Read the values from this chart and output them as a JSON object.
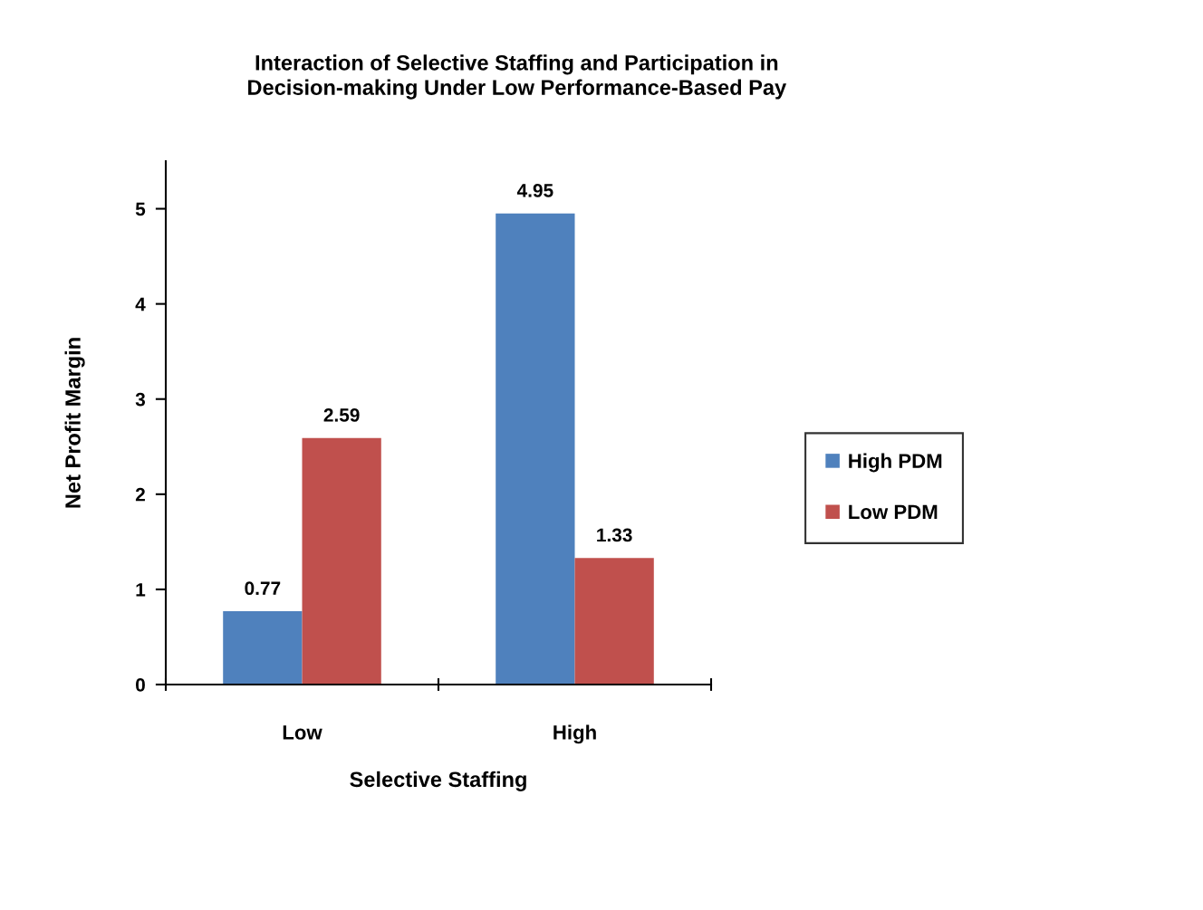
{
  "chart_data": {
    "type": "bar",
    "title": "Interaction of Selective Staffing and Participation in\nDecision-making Under Low Performance-Based Pay",
    "xlabel": "Selective Staffing",
    "ylabel": "Net Profit Margin",
    "categories": [
      "Low",
      "High"
    ],
    "series": [
      {
        "name": "High PDM",
        "color": "#4f81bd",
        "values": [
          0.77,
          4.95
        ]
      },
      {
        "name": "Low PDM",
        "color": "#c0504d",
        "values": [
          2.59,
          1.33
        ]
      }
    ],
    "ylim": [
      0,
      5.5
    ],
    "yticks": [
      0,
      1,
      2,
      3,
      4,
      5
    ],
    "data_labels": true,
    "grid": false,
    "legend": "right"
  }
}
